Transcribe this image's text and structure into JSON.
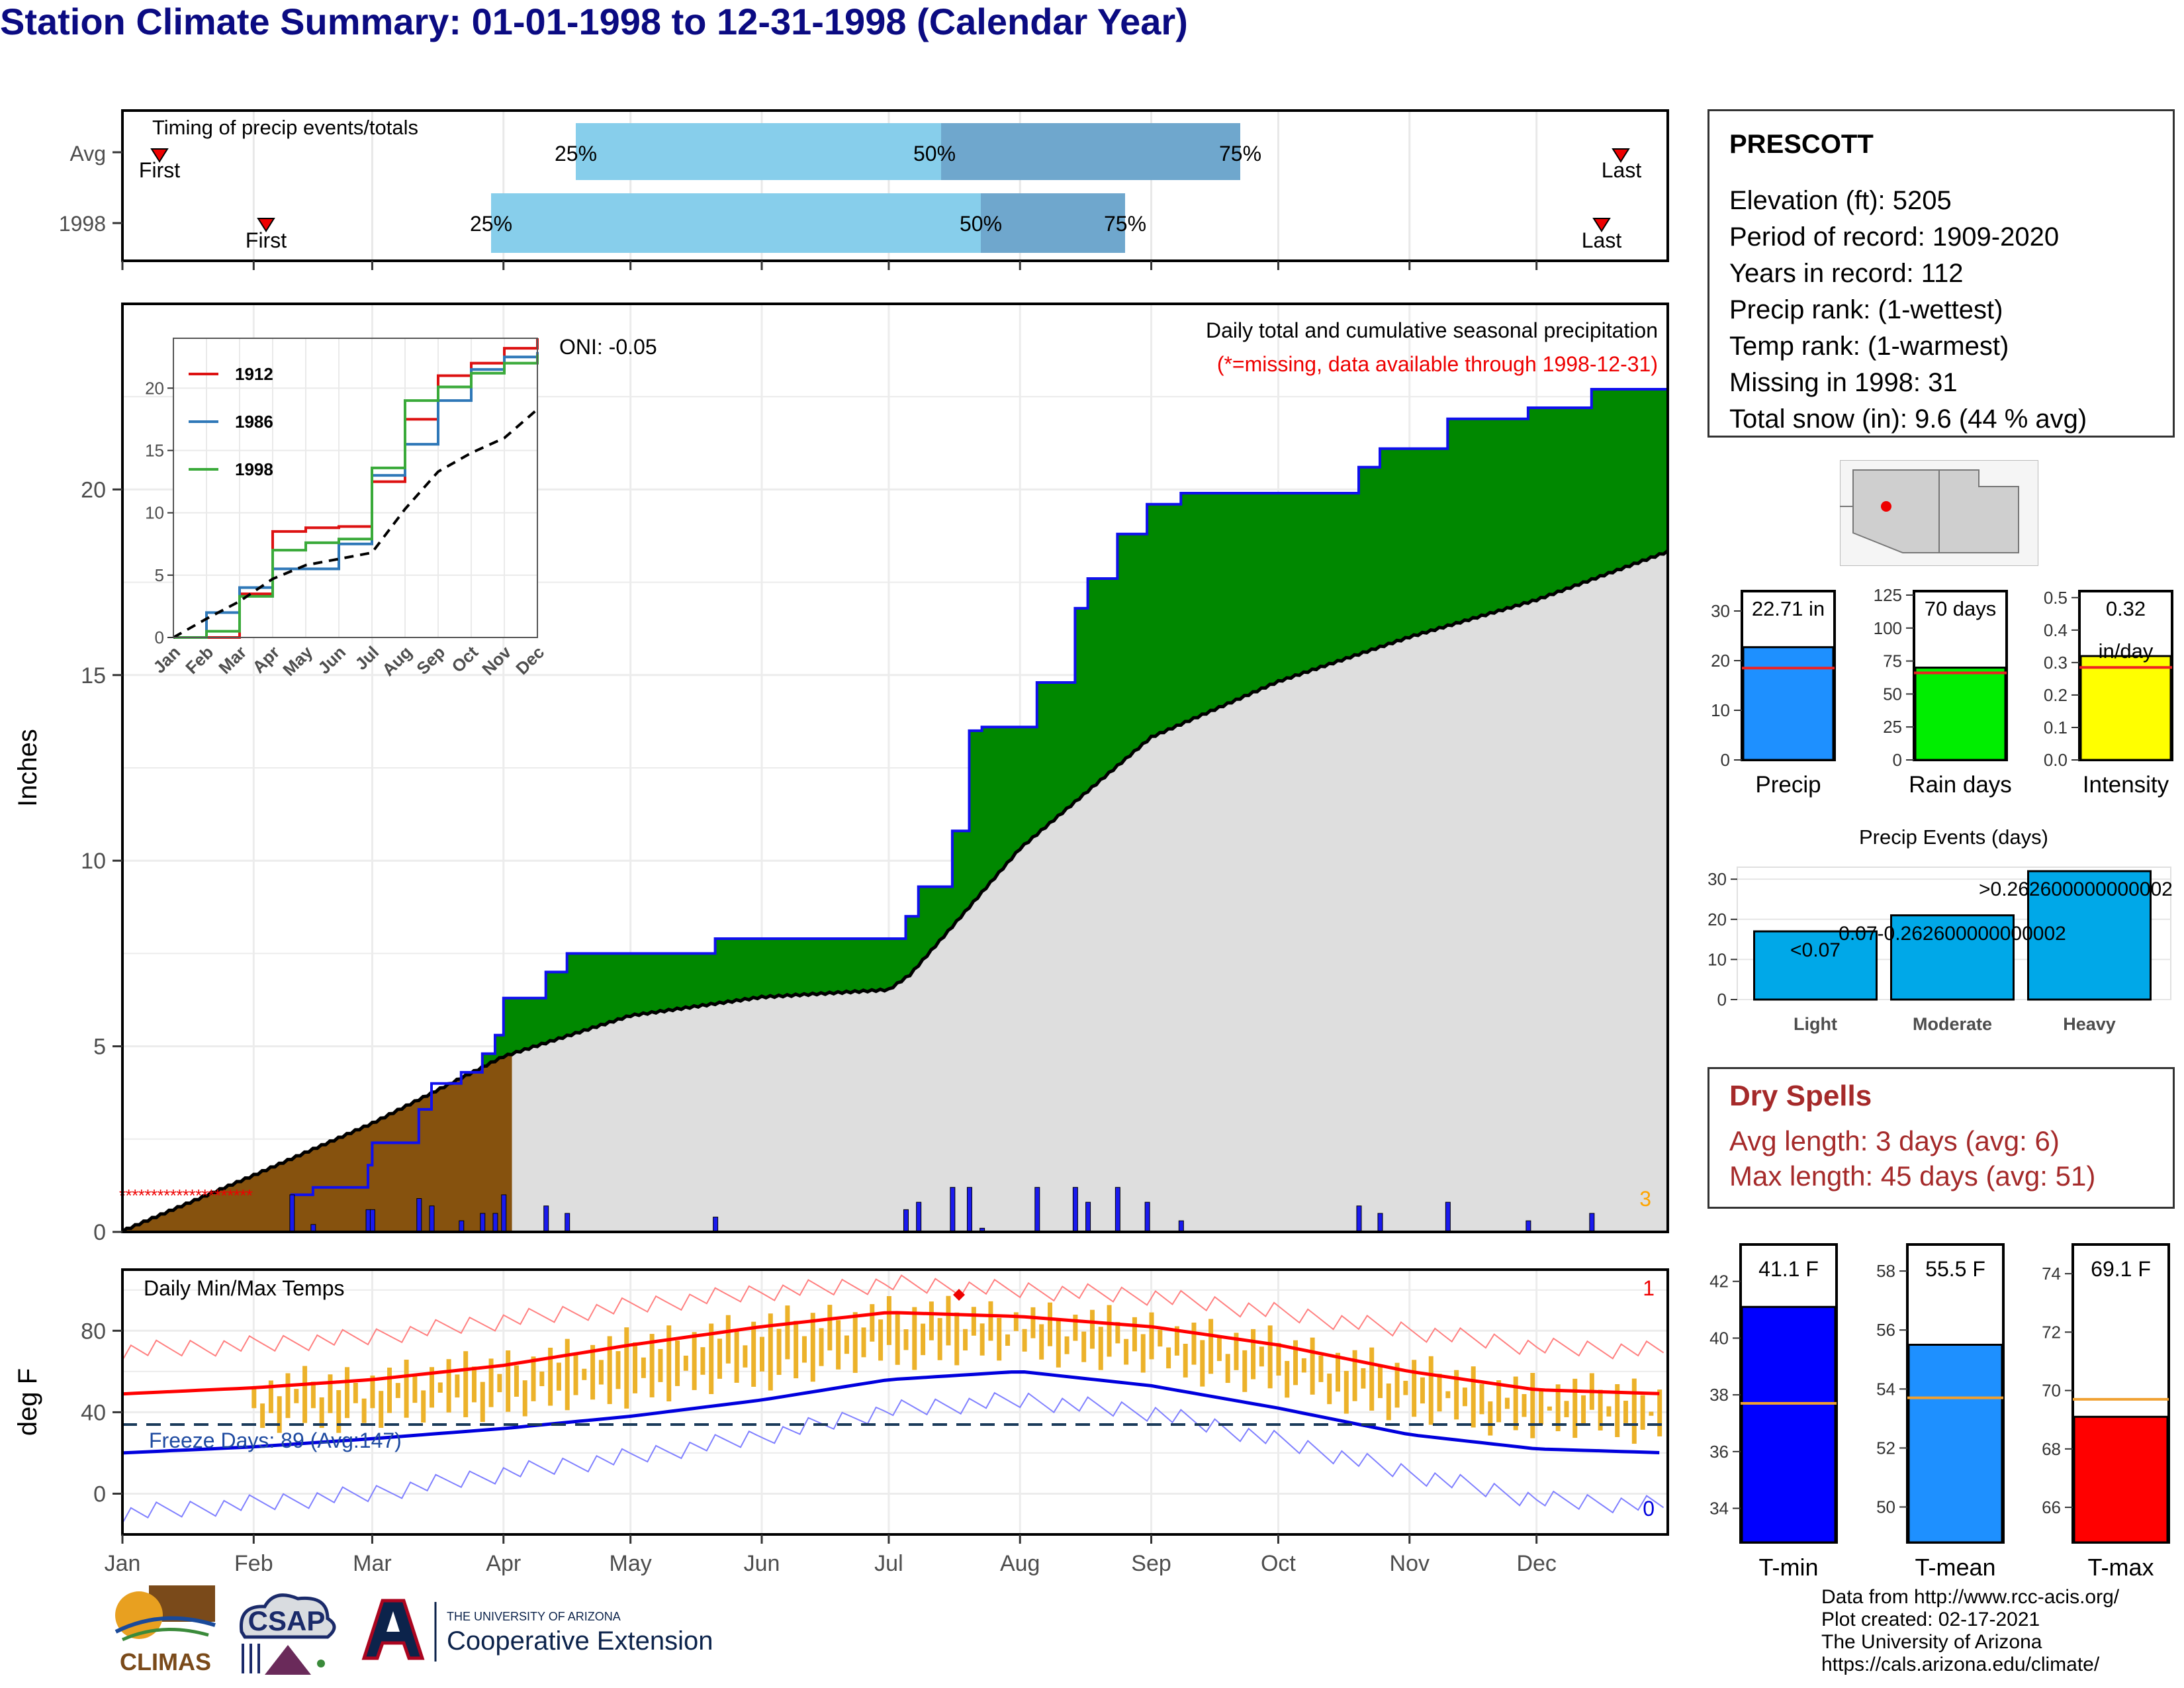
{
  "title": "Station Climate Summary: 01-01-1998 to 12-31-1998 (Calendar Year)",
  "station": {
    "name": "PRESCOTT",
    "lines": [
      "Elevation (ft): 5205",
      "Period of record: 1909-2020",
      "Years in record: 112",
      "Precip rank:  (1-wettest)",
      "Temp rank:  (1-warmest)",
      "Missing in 1998: 31",
      "Total snow (in): 9.6 (44 % avg)"
    ]
  },
  "timing": {
    "label": "Timing of precip events/totals",
    "rows": [
      "Avg",
      "1998"
    ],
    "first_label": "First",
    "last_label": "Last",
    "pct_labels": [
      "25%",
      "50%",
      "75%"
    ],
    "colors": {
      "light": "#87ceeb",
      "dark": "#6fa7cd",
      "marker": "#ee0000"
    }
  },
  "precip_panel": {
    "ylabel": "Inches",
    "caption": "Daily total and cumulative seasonal precipitation",
    "missing_note": "(*=missing, data available through 1998-12-31)",
    "oni": "ONI: -0.05",
    "corner_count": "3",
    "y_ticks": [
      "0",
      "5",
      "10",
      "15",
      "20"
    ]
  },
  "inset": {
    "legend": [
      "1912",
      "1986",
      "1998"
    ],
    "legend_colors": [
      "#dd1111",
      "#2f78b8",
      "#3aaa3a"
    ],
    "y_ticks": [
      "0",
      "5",
      "10",
      "15",
      "20"
    ],
    "months": [
      "Jan",
      "Feb",
      "Mar",
      "Apr",
      "May",
      "Jun",
      "Jul",
      "Aug",
      "Sep",
      "Oct",
      "Nov",
      "Dec"
    ]
  },
  "temp_panel": {
    "ylabel": "deg F",
    "label": "Daily Min/Max Temps",
    "freeze_text": "Freeze Days: 89 (Avg:147)",
    "count_max": "1",
    "count_min": "0",
    "y_ticks": [
      "0",
      "40",
      "80"
    ]
  },
  "months": [
    "Jan",
    "Feb",
    "Mar",
    "Apr",
    "May",
    "Jun",
    "Jul",
    "Aug",
    "Sep",
    "Oct",
    "Nov",
    "Dec"
  ],
  "mini_bars": {
    "precip": {
      "value_label": "22.71 in",
      "label": "Precip",
      "ticks": [
        "0",
        "10",
        "20",
        "30"
      ],
      "value": 22.71,
      "avg": 18.5,
      "ymax": 34,
      "color": "#1e90ff"
    },
    "rain_days": {
      "value_label": "70 days",
      "label": "Rain days",
      "ticks": [
        "0",
        "25",
        "50",
        "75",
        "100",
        "125"
      ],
      "value": 70,
      "avg": 66,
      "ymax": 128,
      "color": "#00ee00"
    },
    "intensity": {
      "value_label": "0.32",
      "value_label2": "in/day",
      "label": "Intensity",
      "ticks": [
        "0.0",
        "0.1",
        "0.2",
        "0.3",
        "0.4",
        "0.5"
      ],
      "value": 0.32,
      "avg": 0.285,
      "ymax": 0.52,
      "color": "#ffff00"
    }
  },
  "precip_events": {
    "title": "Precip Events (days)",
    "categories": [
      "Light",
      "Moderate",
      "Heavy"
    ],
    "values": [
      17,
      21,
      32
    ],
    "bar_labels": [
      "<0.07",
      "0.07-0.262600000000002",
      ">0.262600000000002"
    ],
    "ticks": [
      "0",
      "10",
      "20",
      "30"
    ],
    "color": "#00a8e8"
  },
  "dry_spells": {
    "title": "Dry Spells",
    "avg_line": "Avg length: 3 days (avg: 6)",
    "max_line": "Max length: 45 days (avg: 51)",
    "color": "#a52a2a"
  },
  "temp_bars": {
    "tmin": {
      "value_label": "41.1 F",
      "label": "T-min",
      "ticks": [
        "34",
        "36",
        "38",
        "40",
        "42"
      ],
      "value": 41.1,
      "avg": 37.7,
      "ymin": 32.8,
      "ymax": 43.3,
      "color": "#0000ff"
    },
    "tmean": {
      "value_label": "55.5 F",
      "label": "T-mean",
      "ticks": [
        "50",
        "52",
        "54",
        "56",
        "58"
      ],
      "value": 55.5,
      "avg": 53.7,
      "ymin": 48.8,
      "ymax": 58.9,
      "color": "#1e90ff"
    },
    "tmax": {
      "value_label": "69.1 F",
      "label": "T-max",
      "ticks": [
        "66",
        "68",
        "70",
        "72",
        "74"
      ],
      "value": 69.1,
      "avg": 69.7,
      "ymin": 64.8,
      "ymax": 75.0,
      "color": "#ff0000"
    }
  },
  "credits": [
    "Data from http://www.rcc-acis.org/",
    "Plot created: 02-17-2021",
    "The University of Arizona",
    "https://cals.arizona.edu/climate/"
  ],
  "logos": {
    "climas": "CLIMAS",
    "csap": "CSAP",
    "ua_small": "THE UNIVERSITY OF ARIZONA",
    "ua_big": "Cooperative Extension"
  },
  "chart_data": [
    {
      "type": "area",
      "title": "Daily total and cumulative seasonal precipitation",
      "ylabel": "Inches",
      "xlim": [
        0,
        365
      ],
      "ylim": [
        0,
        25
      ],
      "series": [
        {
          "name": "1998",
          "x": [
            0,
            31,
            40,
            45,
            58,
            59,
            70,
            73,
            80,
            85,
            88,
            90,
            100,
            105,
            135,
            140,
            182,
            185,
            188,
            196,
            200,
            203,
            208,
            216,
            225,
            228,
            235,
            242,
            250,
            253,
            292,
            297,
            310,
            313,
            332,
            347,
            365
          ],
          "values": [
            0,
            0,
            1.0,
            1.2,
            1.8,
            2.4,
            3.3,
            4.0,
            4.3,
            4.8,
            5.3,
            6.3,
            7.0,
            7.5,
            7.5,
            7.9,
            7.9,
            8.5,
            9.3,
            10.8,
            13.5,
            13.6,
            13.6,
            14.8,
            16.8,
            17.6,
            18.8,
            19.6,
            19.9,
            19.9,
            20.6,
            21.1,
            21.1,
            21.9,
            22.2,
            22.7,
            22.71
          ]
        },
        {
          "x": [
            0,
            31,
            59,
            90,
            120,
            151,
            181,
            186,
            196,
            212,
            243,
            273,
            304,
            334,
            365
          ],
          "values": [
            0,
            1.5,
            2.9,
            4.7,
            5.8,
            6.3,
            6.5,
            6.9,
            8.2,
            10.3,
            13.3,
            14.8,
            16.0,
            17.0,
            18.3
          ]
        }
      ]
    },
    {
      "type": "line",
      "x": [
        "Jan",
        "Feb",
        "Mar",
        "Apr",
        "May",
        "Jun",
        "Jul",
        "Aug",
        "Sep",
        "Oct",
        "Nov",
        "Dec"
      ],
      "ylim": [
        0,
        24
      ],
      "series": [
        {
          "name": "1912",
          "values": [
            0,
            0,
            3.5,
            8.5,
            8.8,
            8.9,
            12.5,
            17.5,
            21.0,
            22.0,
            23.2,
            24.0
          ]
        },
        {
          "name": "1986",
          "values": [
            0,
            2.0,
            4.0,
            5.5,
            5.5,
            7.5,
            13.0,
            15.5,
            19.0,
            21.5,
            22.5,
            22.9
          ]
        },
        {
          "name": "1998",
          "values": [
            0,
            0.5,
            3.3,
            7.0,
            7.6,
            7.9,
            13.6,
            19.0,
            20.1,
            21.2,
            22.0,
            22.7
          ]
        },
        {
          "values": [
            0,
            1.5,
            2.9,
            4.7,
            5.8,
            6.3,
            6.8,
            10.3,
            13.3,
            14.8,
            16.0,
            18.3
          ]
        }
      ]
    },
    {
      "type": "line",
      "title": "Daily Min/Max Temps",
      "ylabel": "deg F",
      "x": [
        "Jan",
        "Feb",
        "Mar",
        "Apr",
        "May",
        "Jun",
        "Jul",
        "Aug",
        "Sep",
        "Oct",
        "Nov",
        "Dec",
        "Dec-end"
      ],
      "ylim": [
        -20,
        110
      ],
      "series": [
        {
          "values": [
            49,
            52,
            56,
            63,
            73,
            82,
            89,
            87,
            82,
            73,
            60,
            51,
            49
          ]
        },
        {
          "values": [
            20,
            23,
            27,
            32,
            38,
            46,
            56,
            60,
            53,
            42,
            29,
            22,
            20
          ]
        },
        {
          "values": [
            70,
            73,
            77,
            85,
            92,
            99,
            103,
            100,
            97,
            89,
            80,
            72,
            70
          ]
        },
        {
          "values": [
            -10,
            -5,
            0,
            10,
            18,
            28,
            41,
            46,
            40,
            26,
            10,
            -3,
            -6
          ]
        }
      ]
    },
    {
      "type": "bar",
      "title": "Precip Events (days)",
      "categories": [
        "Light",
        "Moderate",
        "Heavy"
      ],
      "values": [
        17,
        21,
        32
      ],
      "ylim": [
        0,
        33
      ]
    },
    {
      "type": "bar",
      "categories": [
        "Precip",
        "Rain days",
        "Intensity",
        "T-min",
        "T-mean",
        "T-max"
      ],
      "values": [
        22.71,
        70,
        0.32,
        41.1,
        55.5,
        69.1
      ]
    }
  ]
}
